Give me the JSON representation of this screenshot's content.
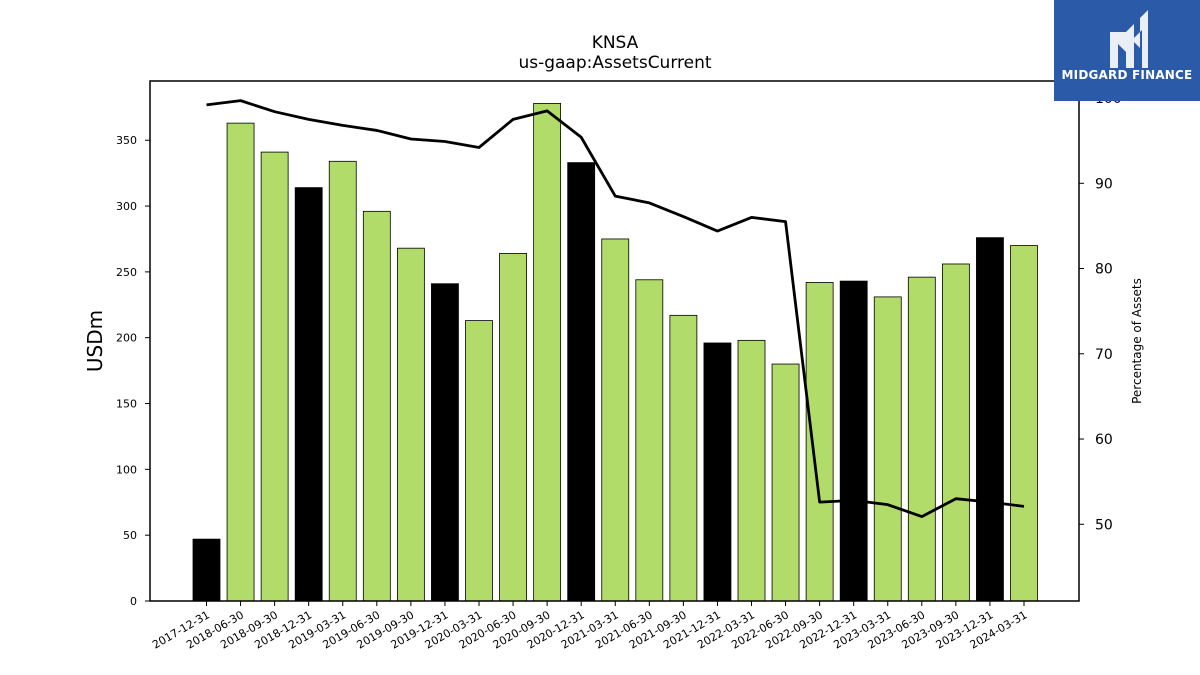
{
  "chart_data": {
    "type": "bar",
    "title": "KNSA",
    "subtitle": "us-gaap:AssetsCurrent",
    "ylabel": "USDm",
    "y2label": "Percentage of Assets",
    "ylim": [
      0,
      395
    ],
    "y2lim": [
      41,
      102
    ],
    "yticks": [
      0,
      50,
      100,
      150,
      200,
      250,
      300,
      350
    ],
    "y2ticks": [
      50,
      60,
      70,
      80,
      90,
      100
    ],
    "categories": [
      "2017-12-31",
      "2018-06-30",
      "2018-09-30",
      "2018-12-31",
      "2019-03-31",
      "2019-06-30",
      "2019-09-30",
      "2019-12-31",
      "2020-03-31",
      "2020-06-30",
      "2020-09-30",
      "2020-12-31",
      "2021-03-31",
      "2021-06-30",
      "2021-09-30",
      "2021-12-31",
      "2022-03-31",
      "2022-06-30",
      "2022-09-30",
      "2022-12-31",
      "2023-03-31",
      "2023-06-30",
      "2023-09-30",
      "2023-12-31",
      "2024-03-31"
    ],
    "series": [
      {
        "type": "bar",
        "values": [
          47,
          363,
          341,
          314,
          334,
          296,
          268,
          241,
          213,
          264,
          378,
          333,
          275,
          244,
          217,
          196,
          198,
          180,
          242,
          243,
          231,
          246,
          256,
          276,
          270
        ],
        "annual": [
          true,
          false,
          false,
          true,
          false,
          false,
          false,
          true,
          false,
          false,
          false,
          true,
          false,
          false,
          false,
          true,
          false,
          false,
          false,
          true,
          false,
          false,
          false,
          true,
          false
        ]
      },
      {
        "type": "line",
        "axis": "right",
        "values": [
          99.2,
          99.7,
          98.4,
          97.5,
          96.8,
          96.2,
          95.2,
          94.9,
          94.2,
          97.5,
          98.5,
          95.4,
          88.5,
          87.7,
          86.1,
          84.4,
          86.0,
          85.5,
          52.6,
          52.8,
          52.3,
          50.9,
          53.0,
          52.6,
          52.1
        ]
      }
    ],
    "colors": {
      "annual_bar": "#000000",
      "quarter_bar": "#b2dc6a",
      "line": "#000000",
      "bar_edge": "#000000"
    },
    "grid": false,
    "logo": {
      "text": "MIDGARD FINANCE",
      "background": "#2b5aa8"
    }
  }
}
